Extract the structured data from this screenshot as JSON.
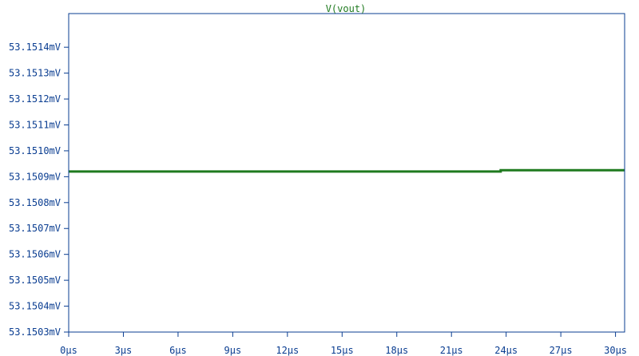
{
  "chart_data": {
    "type": "line",
    "title": "V(vout)",
    "xlabel": "",
    "ylabel": "",
    "x_unit": "µs",
    "y_unit": "mV",
    "xlim": [
      0,
      30.5
    ],
    "ylim": [
      53.1503,
      53.15153
    ],
    "x_ticks": [
      0,
      3,
      6,
      9,
      12,
      15,
      18,
      21,
      24,
      27,
      30
    ],
    "x_tick_labels": [
      "0µs",
      "3µs",
      "6µs",
      "9µs",
      "12µs",
      "15µs",
      "18µs",
      "21µs",
      "24µs",
      "27µs",
      "30µs"
    ],
    "y_ticks": [
      53.1503,
      53.1504,
      53.1505,
      53.1506,
      53.1507,
      53.1508,
      53.1509,
      53.151,
      53.1511,
      53.1512,
      53.1513,
      53.1514
    ],
    "y_tick_labels": [
      "53.1503mV",
      "53.1504mV",
      "53.1505mV",
      "53.1506mV",
      "53.1507mV",
      "53.1508mV",
      "53.1509mV",
      "53.1510mV",
      "53.1511mV",
      "53.1512mV",
      "53.1513mV",
      "53.1514mV"
    ],
    "grid": false,
    "series": [
      {
        "name": "V(vout)",
        "color": "#1f7a1f",
        "points": [
          [
            0,
            53.15092
          ],
          [
            23.7,
            53.15092
          ],
          [
            23.7,
            53.150925
          ],
          [
            30.5,
            53.150925
          ]
        ]
      }
    ]
  }
}
